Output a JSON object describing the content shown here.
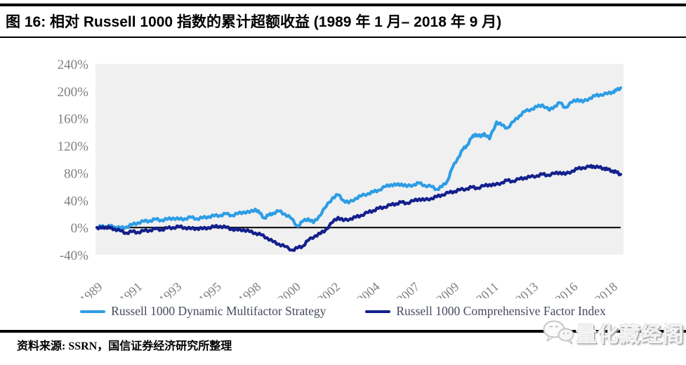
{
  "figure": {
    "title": "图 16: 相对 Russell 1000 指数的累计超额收益 (1989 年 1 月– 2018 年 9 月)",
    "source_note": "资料来源: SSRN，国信证券经济研究所整理",
    "watermark_text": "量化藏经阁",
    "watermark_icon": "wechat-chat-bubbles-icon"
  },
  "colors": {
    "accent_light_blue": "#2D9DE5",
    "accent_navy": "#13208C",
    "plot_background": "#F0F0F0",
    "axis_label_gray": "#7F7F7F",
    "zero_line_black": "#1A1A1A",
    "legend_text": "#454B5E",
    "rule_black": "#000000"
  },
  "chart_data": {
    "type": "line",
    "title": "相对 Russell 1000 指数的累计超额收益 (1989 年 1 月– 2018 年 9 月)",
    "xlabel": "",
    "ylabel": "",
    "grid": false,
    "zero_line": true,
    "legend_position": "bottom",
    "ylim": [
      -40,
      240
    ],
    "yticks": [
      240,
      200,
      160,
      120,
      80,
      40,
      0,
      -40
    ],
    "ytick_labels": [
      "240%",
      "200%",
      "160%",
      "120%",
      "80%",
      "40%",
      "0%",
      "-40%"
    ],
    "xlim": [
      1989,
      2018.75
    ],
    "xticks": [
      1989,
      1991.25,
      1993.5,
      1995.75,
      1998,
      2000.25,
      2002.5,
      2004.75,
      2007,
      2009.25,
      2011.5,
      2013.75,
      2016,
      2018.25
    ],
    "xtick_labels": [
      "1989",
      "1991",
      "1993",
      "1995",
      "1998",
      "2000",
      "2002",
      "2004",
      "2007",
      "2009",
      "2011",
      "2013",
      "2016",
      "2018"
    ],
    "series": [
      {
        "name": "Russell 1000 Dynamic Multifactor Strategy",
        "color": "#2D9DE5",
        "points": [
          [
            1989,
            0
          ],
          [
            1989.25,
            1.5
          ],
          [
            1989.5,
            0.5
          ],
          [
            1989.75,
            2
          ],
          [
            1990,
            1
          ],
          [
            1990.33,
            -1
          ],
          [
            1990.67,
            1
          ],
          [
            1991,
            4
          ],
          [
            1991.33,
            7
          ],
          [
            1991.67,
            9
          ],
          [
            1992,
            10
          ],
          [
            1992.33,
            12
          ],
          [
            1992.67,
            11
          ],
          [
            1993,
            12
          ],
          [
            1993.33,
            14
          ],
          [
            1993.67,
            12
          ],
          [
            1994,
            13
          ],
          [
            1994.33,
            15
          ],
          [
            1994.67,
            13
          ],
          [
            1995,
            14
          ],
          [
            1995.33,
            16
          ],
          [
            1995.67,
            17
          ],
          [
            1996,
            18
          ],
          [
            1996.33,
            20
          ],
          [
            1996.67,
            18
          ],
          [
            1997,
            20
          ],
          [
            1997.33,
            23
          ],
          [
            1997.67,
            22
          ],
          [
            1998,
            27
          ],
          [
            1998.25,
            21
          ],
          [
            1998.5,
            14
          ],
          [
            1998.75,
            18
          ],
          [
            1999,
            21
          ],
          [
            1999.33,
            24
          ],
          [
            1999.67,
            20
          ],
          [
            2000,
            14
          ],
          [
            2000.4,
            2
          ],
          [
            2000.7,
            9
          ],
          [
            2001,
            13
          ],
          [
            2001.3,
            7
          ],
          [
            2001.6,
            16
          ],
          [
            2002,
            30
          ],
          [
            2002.4,
            44
          ],
          [
            2002.7,
            48
          ],
          [
            2003,
            40
          ],
          [
            2003.3,
            36
          ],
          [
            2003.7,
            43
          ],
          [
            2004,
            46
          ],
          [
            2004.4,
            50
          ],
          [
            2004.7,
            52
          ],
          [
            2005,
            55
          ],
          [
            2005.4,
            60
          ],
          [
            2005.7,
            63
          ],
          [
            2006,
            62
          ],
          [
            2006.3,
            64
          ],
          [
            2006.6,
            60
          ],
          [
            2007,
            63
          ],
          [
            2007.3,
            65
          ],
          [
            2007.6,
            62
          ],
          [
            2008,
            60
          ],
          [
            2008.3,
            56
          ],
          [
            2008.6,
            60
          ],
          [
            2008.9,
            68
          ],
          [
            2009.2,
            88
          ],
          [
            2009.5,
            102
          ],
          [
            2009.8,
            115
          ],
          [
            2010,
            120
          ],
          [
            2010.3,
            132
          ],
          [
            2010.5,
            137
          ],
          [
            2010.8,
            133
          ],
          [
            2011,
            138
          ],
          [
            2011.3,
            130
          ],
          [
            2011.7,
            155
          ],
          [
            2012,
            150
          ],
          [
            2012.3,
            146
          ],
          [
            2012.7,
            156
          ],
          [
            2013,
            164
          ],
          [
            2013.3,
            170
          ],
          [
            2013.7,
            174
          ],
          [
            2014,
            177
          ],
          [
            2014.3,
            180
          ],
          [
            2014.7,
            172
          ],
          [
            2015,
            178
          ],
          [
            2015.3,
            183
          ],
          [
            2015.6,
            176
          ],
          [
            2016,
            184
          ],
          [
            2016.3,
            188
          ],
          [
            2016.6,
            184
          ],
          [
            2017,
            190
          ],
          [
            2017.3,
            193
          ],
          [
            2017.6,
            195
          ],
          [
            2018,
            196
          ],
          [
            2018.3,
            199
          ],
          [
            2018.5,
            201
          ],
          [
            2018.75,
            205
          ]
        ]
      },
      {
        "name": "Russell 1000 Comprehensive Factor Index",
        "color": "#13208C",
        "points": [
          [
            1989,
            0
          ],
          [
            1989.25,
            -1
          ],
          [
            1989.5,
            1
          ],
          [
            1989.75,
            -1
          ],
          [
            1990,
            -2
          ],
          [
            1990.33,
            -5
          ],
          [
            1990.67,
            -8
          ],
          [
            1991,
            -6
          ],
          [
            1991.33,
            -7
          ],
          [
            1991.67,
            -5
          ],
          [
            1992,
            -4
          ],
          [
            1992.33,
            -2
          ],
          [
            1992.67,
            -3
          ],
          [
            1993,
            -1
          ],
          [
            1993.33,
            0
          ],
          [
            1993.67,
            1
          ],
          [
            1994,
            0
          ],
          [
            1994.33,
            -2
          ],
          [
            1994.67,
            -1
          ],
          [
            1995,
            -2
          ],
          [
            1995.33,
            0
          ],
          [
            1995.67,
            1
          ],
          [
            1996,
            2
          ],
          [
            1996.33,
            0
          ],
          [
            1996.67,
            -2
          ],
          [
            1997,
            -4
          ],
          [
            1997.33,
            -3
          ],
          [
            1997.67,
            -6
          ],
          [
            1998,
            -8
          ],
          [
            1998.33,
            -11
          ],
          [
            1998.67,
            -15
          ],
          [
            1999,
            -21
          ],
          [
            1999.33,
            -24
          ],
          [
            1999.67,
            -28
          ],
          [
            2000.1,
            -33
          ],
          [
            2000.4,
            -30
          ],
          [
            2000.7,
            -27
          ],
          [
            2001,
            -19
          ],
          [
            2001.4,
            -12
          ],
          [
            2001.7,
            -9
          ],
          [
            2002,
            -3
          ],
          [
            2002.4,
            8
          ],
          [
            2002.7,
            15
          ],
          [
            2003,
            10
          ],
          [
            2003.4,
            13
          ],
          [
            2003.7,
            15
          ],
          [
            2004,
            18
          ],
          [
            2004.4,
            22
          ],
          [
            2004.7,
            25
          ],
          [
            2005,
            28
          ],
          [
            2005.3,
            30
          ],
          [
            2005.7,
            33
          ],
          [
            2006,
            35
          ],
          [
            2006.3,
            37
          ],
          [
            2006.6,
            36
          ],
          [
            2007,
            39
          ],
          [
            2007.3,
            42
          ],
          [
            2007.6,
            40
          ],
          [
            2008,
            43
          ],
          [
            2008.3,
            45
          ],
          [
            2008.6,
            48
          ],
          [
            2009,
            51
          ],
          [
            2009.3,
            53
          ],
          [
            2009.6,
            55
          ],
          [
            2010,
            57
          ],
          [
            2010.3,
            59
          ],
          [
            2010.6,
            58
          ],
          [
            2011,
            61
          ],
          [
            2011.3,
            63
          ],
          [
            2011.6,
            62
          ],
          [
            2012,
            66
          ],
          [
            2012.3,
            69
          ],
          [
            2012.6,
            68
          ],
          [
            2013,
            71
          ],
          [
            2013.3,
            73
          ],
          [
            2013.6,
            74
          ],
          [
            2014,
            76
          ],
          [
            2014.3,
            78
          ],
          [
            2014.6,
            77
          ],
          [
            2015,
            79
          ],
          [
            2015.3,
            81
          ],
          [
            2015.6,
            78
          ],
          [
            2016,
            83
          ],
          [
            2016.3,
            86
          ],
          [
            2016.6,
            88
          ],
          [
            2017,
            89
          ],
          [
            2017.2,
            90
          ],
          [
            2017.5,
            88
          ],
          [
            2017.8,
            87
          ],
          [
            2018,
            85
          ],
          [
            2018.3,
            83
          ],
          [
            2018.5,
            81
          ],
          [
            2018.75,
            78
          ]
        ]
      }
    ]
  }
}
